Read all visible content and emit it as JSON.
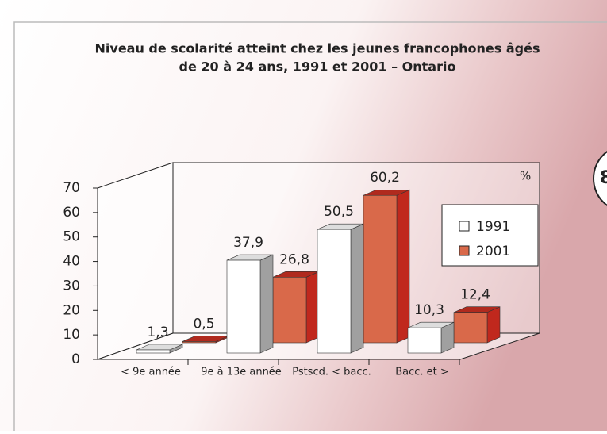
{
  "page_marker": "8",
  "chart_data": {
    "type": "bar3d",
    "title": [
      "Niveau de scolarité atteint chez les jeunes francophones âgés",
      "de 20 à 24 ans, 1991 et 2001 – Ontario"
    ],
    "unit_label": "%",
    "categories": [
      "< 9e année",
      "9e à 13e année",
      "Pstscd. < bacc.",
      "Bacc. et >"
    ],
    "series": [
      {
        "name": "1991",
        "color": "#ffffff",
        "values": [
          1.3,
          37.9,
          50.5,
          10.3
        ],
        "value_labels": [
          "1,3",
          "37,9",
          "50,5",
          "10,3"
        ]
      },
      {
        "name": "2001",
        "color": "#d9694a",
        "values": [
          0.5,
          26.8,
          60.2,
          12.4
        ],
        "value_labels": [
          "0,5",
          "26,8",
          "60,2",
          "12,4"
        ]
      }
    ],
    "ylim": [
      0,
      70
    ],
    "yticks": [
      0,
      10,
      20,
      30,
      40,
      50,
      60,
      70
    ],
    "legend": "right"
  }
}
